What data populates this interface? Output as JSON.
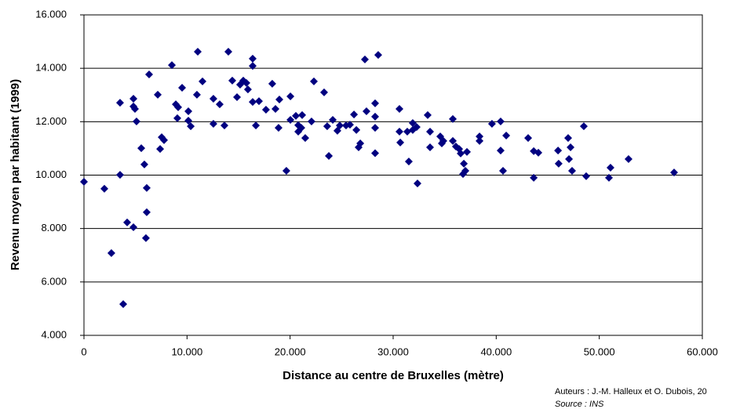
{
  "chart_data": {
    "type": "scatter",
    "x_label": "Distance au centre de Bruxelles (mètre)",
    "y_label": "Revenu moyen par habitant (1999)",
    "annotations": [
      "Auteurs : J.-M. Halleux et O. Dubois, 20",
      "Source : INS"
    ],
    "color": "#000080",
    "grid": true,
    "xlim": [
      0,
      60000
    ],
    "xticks": [
      0,
      {
        "value": 10000,
        "label": "10.000"
      },
      {
        "value": 20000,
        "label": "20.000"
      },
      {
        "value": 30000,
        "label": "30.000"
      },
      {
        "value": 40000,
        "label": "40.000"
      },
      {
        "value": 50000,
        "label": "50.000"
      },
      {
        "value": 60000,
        "label": "60.000"
      }
    ],
    "ylim": [
      4000,
      16000
    ],
    "yticks": [
      {
        "value": 4000,
        "label": "4.000"
      },
      {
        "value": 6000,
        "label": "6.000"
      },
      {
        "value": 8000,
        "label": "8.000"
      },
      {
        "value": 10000,
        "label": "10.000"
      },
      {
        "value": 12000,
        "label": "12.000"
      },
      {
        "value": 14000,
        "label": "14.000"
      },
      {
        "value": 16000,
        "label": "16.000"
      }
    ],
    "x": [
      0,
      1980,
      2660,
      3500,
      3500,
      3810,
      4190,
      4800,
      4800,
      4800,
      4950,
      5100,
      5560,
      5860,
      6090,
      6090,
      6010,
      6320,
      7160,
      7390,
      7540,
      7770,
      8530,
      8910,
      9140,
      9060,
      9520,
      10130,
      10130,
      10360,
      11040,
      10960,
      11500,
      12560,
      12560,
      13170,
      13630,
      14010,
      14390,
      14850,
      15150,
      15460,
      15760,
      15910,
      16370,
      16370,
      16370,
      16680,
      16980,
      17660,
      18270,
      18580,
      18880,
      18960,
      19640,
      20030,
      20030,
      20560,
      20790,
      20790,
      21170,
      21090,
      21470,
      22080,
      22310,
      23300,
      23600,
      23760,
      24140,
      24590,
      24820,
      25430,
      25810,
      26200,
      26430,
      26650,
      26810,
      27260,
      27410,
      28250,
      28250,
      28250,
      28550,
      28250,
      30610,
      30610,
      30690,
      31370,
      31520,
      31900,
      31900,
      32280,
      32360,
      33350,
      33580,
      33580,
      34570,
      34720,
      34870,
      35790,
      35790,
      36090,
      36400,
      36550,
      36780,
      36860,
      37010,
      37160,
      38380,
      38380,
      39590,
      40430,
      40430,
      40660,
      40970,
      43100,
      43640,
      43640,
      44090,
      46000,
      46060,
      46980,
      47060,
      47210,
      47360,
      48500,
      48730,
      50940,
      51090,
      52840,
      57260
    ],
    "values": [
      9750,
      9490,
      7080,
      12710,
      10010,
      5170,
      8230,
      8050,
      12860,
      12570,
      12480,
      12010,
      11010,
      10400,
      9520,
      8610,
      7640,
      13770,
      13010,
      10980,
      11420,
      11310,
      14120,
      12650,
      12540,
      12130,
      13270,
      12390,
      12040,
      11830,
      14620,
      13010,
      13510,
      12860,
      11920,
      12650,
      11860,
      14620,
      13540,
      12920,
      13390,
      13540,
      13450,
      13210,
      14360,
      14090,
      12740,
      11860,
      12770,
      12450,
      13420,
      12480,
      11770,
      12830,
      10160,
      12950,
      12070,
      12220,
      11870,
      11630,
      12250,
      11770,
      11390,
      12010,
      13510,
      13100,
      11830,
      10720,
      12070,
      11660,
      11860,
      11860,
      11890,
      12270,
      11690,
      11040,
      11190,
      14330,
      12390,
      11770,
      12190,
      12690,
      14500,
      10820,
      12480,
      11630,
      11220,
      11630,
      10510,
      11950,
      11690,
      11800,
      9690,
      12250,
      11630,
      11040,
      11450,
      11190,
      11280,
      12100,
      11280,
      11070,
      10980,
      10810,
      10040,
      10430,
      10160,
      10870,
      11450,
      11280,
      11920,
      12010,
      10920,
      10160,
      11480,
      11390,
      10900,
      9900,
      10840,
      10920,
      10430,
      11390,
      10600,
      11040,
      10160,
      11830,
      9960,
      9900,
      10280,
      10600,
      10100
    ]
  }
}
